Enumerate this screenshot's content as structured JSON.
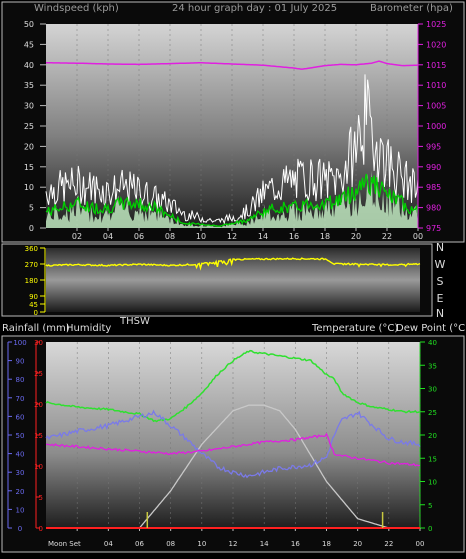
{
  "header": {
    "wind_title": "Windspeed (kph)",
    "graph_title": "24 hour graph day : 01 July 2025",
    "baro_title": "Barometer (hpa)"
  },
  "panel2": {
    "thsw_label": "THSW",
    "compass": [
      "N",
      "W",
      "S",
      "E",
      "N"
    ]
  },
  "panel3": {
    "rain_title": "Rainfall (mm)",
    "humidity_title": "Humidity",
    "temp_title": "Temperature (°C)",
    "dew_title": "Dew Point (°C)",
    "moon_label": "Moon Set"
  },
  "colors": {
    "wind_gust": "#ffffff",
    "wind_avg": "#00d000",
    "wind_fill": "#bfe8bf",
    "barometer": "#e020e0",
    "direction": "#ffff00",
    "temperature": "#30e030",
    "humidity": "#7a7ae8",
    "dew_point": "#e020e0",
    "solar": "#c8c8c8",
    "rain_axis": "#ff2020",
    "hum_axis": "#6a6af0",
    "temp_axis": "#20e020",
    "marker": "#c8c840"
  },
  "chart_data": [
    {
      "type": "line",
      "name": "wind-baro",
      "x_ticks": [
        "02",
        "04",
        "06",
        "08",
        "10",
        "12",
        "14",
        "16",
        "18",
        "20",
        "22",
        "00"
      ],
      "x_range": [
        0,
        24
      ],
      "wind_ticks": [
        0,
        5,
        10,
        15,
        20,
        25,
        30,
        35,
        40,
        45,
        50
      ],
      "wind_range": [
        0,
        50
      ],
      "baro_ticks": [
        975,
        980,
        985,
        990,
        995,
        1000,
        1005,
        1010,
        1015,
        1020,
        1025
      ],
      "baro_range": [
        975,
        1025
      ],
      "series": [
        {
          "axis": "wind",
          "x": [
            0,
            1,
            2,
            3,
            4,
            5,
            6,
            7,
            8,
            9,
            10,
            11,
            12,
            13,
            14,
            15,
            16,
            17,
            18,
            19,
            20,
            20.5,
            21,
            22,
            23,
            24
          ],
          "values": [
            11,
            12,
            13,
            12,
            11,
            12,
            11,
            9,
            7,
            4,
            3,
            2,
            3,
            5,
            10,
            13,
            14,
            15,
            14,
            15,
            24,
            33,
            28,
            20,
            15,
            11
          ]
        },
        {
          "axis": "wind",
          "x": [
            0,
            1,
            2,
            3,
            4,
            5,
            6,
            7,
            8,
            9,
            10,
            11,
            12,
            13,
            14,
            15,
            16,
            17,
            18,
            19,
            20,
            20.5,
            21,
            22,
            23,
            24
          ],
          "values": [
            4,
            5,
            6,
            5,
            5,
            6,
            6,
            5,
            3,
            1,
            1,
            0.5,
            1,
            2,
            4,
            5,
            5,
            6,
            6,
            7,
            9,
            12,
            11,
            8,
            6,
            4
          ]
        },
        {
          "axis": "baro",
          "x": [
            0,
            2,
            4,
            6,
            8,
            10,
            12,
            14,
            16,
            16.5,
            17,
            18,
            19,
            20,
            21,
            21.5,
            22,
            23,
            24
          ],
          "values": [
            1015.5,
            1015.4,
            1015.2,
            1015.1,
            1015.3,
            1015.5,
            1015.2,
            1014.9,
            1014.2,
            1013.9,
            1014.2,
            1014.8,
            1015.1,
            1015.0,
            1015.4,
            1015.9,
            1015.3,
            1014.8,
            1014.9
          ]
        }
      ]
    },
    {
      "type": "line",
      "name": "wind-direction",
      "y_ticks": [
        0,
        45,
        90,
        180,
        270,
        360
      ],
      "y_range": [
        0,
        360
      ],
      "series": [
        {
          "x": [
            0,
            2,
            4,
            6,
            8,
            10,
            11,
            12,
            14,
            16,
            18,
            18.5,
            20,
            22,
            24
          ],
          "values": [
            262,
            266,
            262,
            268,
            262,
            270,
            285,
            295,
            298,
            300,
            298,
            270,
            270,
            265,
            270
          ]
        }
      ]
    },
    {
      "type": "line",
      "name": "temp-humidity-rain",
      "humidity_ticks": [
        0,
        10,
        20,
        30,
        40,
        50,
        60,
        70,
        80,
        90,
        100
      ],
      "humidity_range": [
        0,
        100
      ],
      "rain_ticks": [
        0,
        5,
        10,
        15,
        20,
        25,
        30
      ],
      "rain_range": [
        0,
        30
      ],
      "temp_ticks": [
        0,
        5,
        10,
        15,
        20,
        25,
        30,
        35,
        40
      ],
      "temp_range": [
        0,
        40
      ],
      "series": [
        {
          "axis": "temp",
          "x": [
            0,
            2,
            4,
            6,
            7,
            8,
            9,
            10,
            11,
            12,
            13,
            14,
            15,
            16,
            17,
            18,
            18.5,
            19,
            20,
            21,
            22,
            23,
            24
          ],
          "values": [
            27,
            26,
            25.5,
            24.5,
            23,
            23.5,
            26,
            29,
            33,
            36,
            38,
            37.5,
            37,
            36.5,
            36,
            33,
            32,
            29,
            27,
            26,
            25.5,
            25,
            25
          ]
        },
        {
          "axis": "humidity",
          "x": [
            0,
            2,
            4,
            6,
            7,
            8,
            9,
            10,
            11,
            12,
            13,
            14,
            15,
            16,
            17,
            18,
            18.5,
            19,
            20,
            21,
            22,
            23,
            24
          ],
          "values": [
            48,
            52,
            55,
            60,
            62,
            55,
            48,
            40,
            33,
            30,
            28,
            30,
            32,
            33,
            34,
            38,
            50,
            58,
            62,
            55,
            48,
            46,
            45
          ]
        },
        {
          "axis": "temp",
          "x": [
            0,
            2,
            4,
            6,
            8,
            10,
            12,
            14,
            16,
            18,
            18.5,
            19,
            20,
            22,
            24
          ],
          "values": [
            18,
            17.5,
            17,
            16.5,
            16,
            16.5,
            17.5,
            18.5,
            19,
            20,
            16,
            15.5,
            15,
            14,
            13.5
          ]
        },
        {
          "axis": "humidity",
          "x": [
            6,
            8,
            10,
            12,
            13,
            14,
            15,
            16,
            18,
            20,
            22
          ],
          "values": [
            0,
            20,
            45,
            63,
            66,
            66,
            63,
            53,
            25,
            5,
            0
          ]
        }
      ],
      "rain": 0,
      "markers_x": [
        6.5,
        21.6
      ]
    }
  ]
}
